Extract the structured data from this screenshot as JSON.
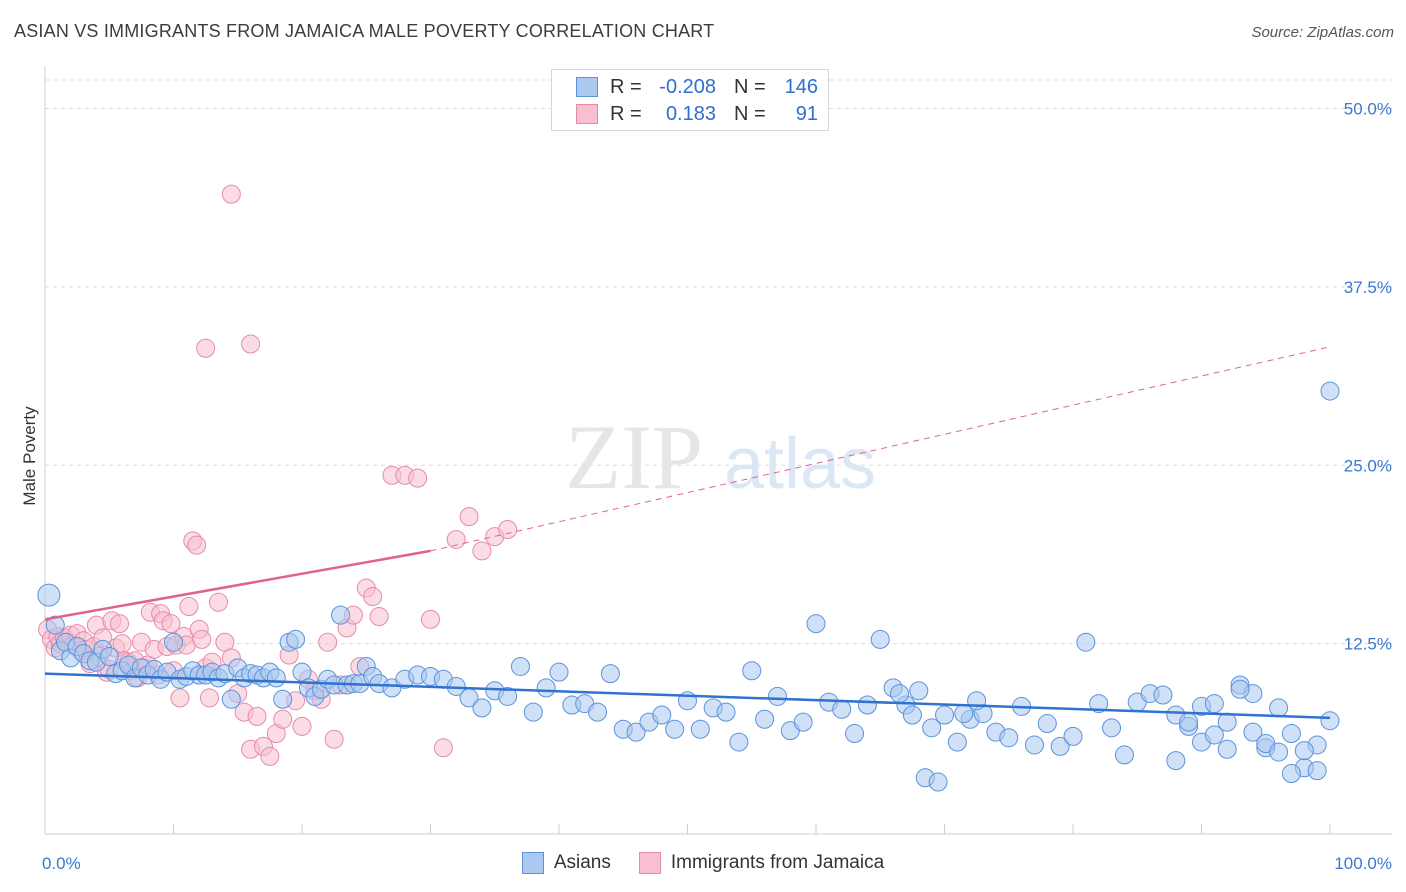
{
  "title": "ASIAN VS IMMIGRANTS FROM JAMAICA MALE POVERTY CORRELATION CHART",
  "source": "Source: ZipAtlas.com",
  "watermark": {
    "zip": "ZIP",
    "atlas": "atlas"
  },
  "legend": {
    "rows": [
      {
        "r_label": "R =",
        "r_value": "-0.208",
        "n_label": "N =",
        "n_value": "146"
      },
      {
        "r_label": "R =",
        "r_value": "0.183",
        "n_label": "N =",
        "n_value": "91"
      }
    ]
  },
  "bottom_legend": [
    "Asians",
    "Immigrants from Jamaica"
  ],
  "colors": {
    "asian_fill": "#aac8f0",
    "asian_stroke": "#5a93dc",
    "asian_line": "#2f72d0",
    "jamaica_fill": "#f7bfd0",
    "jamaica_stroke": "#e78aaa",
    "jamaica_line": "#e0628f",
    "axis_text": "#3a78d0",
    "grid": "#dcdcdc"
  },
  "chart_data": {
    "type": "scatter",
    "xlabel": "",
    "ylabel": "Male Poverty",
    "xlim": [
      0,
      100
    ],
    "ylim": [
      0,
      52
    ],
    "x_tick_labels": [
      "0.0%",
      "100.0%"
    ],
    "y_ticks": [
      12.5,
      25.0,
      37.5,
      50.0
    ],
    "y_tick_labels": [
      "12.5%",
      "25.0%",
      "37.5%",
      "50.0%"
    ],
    "grid": true,
    "series": [
      {
        "name": "Asians",
        "trend": {
          "x": [
            0,
            100
          ],
          "y": [
            10.4,
            7.3
          ]
        },
        "points": [
          [
            0.3,
            15.9
          ],
          [
            0.8,
            13.8
          ],
          [
            1.2,
            12.0
          ],
          [
            1.6,
            12.6
          ],
          [
            2.0,
            11.5
          ],
          [
            2.5,
            12.3
          ],
          [
            3.0,
            11.8
          ],
          [
            3.5,
            11.3
          ],
          [
            4.0,
            11.2
          ],
          [
            4.5,
            12.1
          ],
          [
            5.0,
            11.6
          ],
          [
            5.5,
            10.4
          ],
          [
            6.0,
            10.6
          ],
          [
            6.5,
            11.0
          ],
          [
            7.0,
            10.1
          ],
          [
            7.5,
            10.8
          ],
          [
            8.0,
            10.3
          ],
          [
            8.5,
            10.7
          ],
          [
            9.0,
            10.0
          ],
          [
            9.5,
            10.5
          ],
          [
            10.0,
            12.6
          ],
          [
            10.5,
            10.0
          ],
          [
            11.0,
            10.2
          ],
          [
            11.5,
            10.6
          ],
          [
            12.0,
            10.3
          ],
          [
            12.5,
            10.3
          ],
          [
            13.0,
            10.5
          ],
          [
            13.5,
            10.1
          ],
          [
            14.0,
            10.4
          ],
          [
            14.5,
            8.6
          ],
          [
            15.0,
            10.8
          ],
          [
            15.5,
            10.1
          ],
          [
            16.0,
            10.4
          ],
          [
            16.5,
            10.3
          ],
          [
            17.0,
            10.1
          ],
          [
            17.5,
            10.5
          ],
          [
            18.0,
            10.1
          ],
          [
            18.5,
            8.6
          ],
          [
            19.0,
            12.6
          ],
          [
            19.5,
            12.8
          ],
          [
            20.0,
            10.5
          ],
          [
            20.5,
            9.4
          ],
          [
            21.0,
            8.8
          ],
          [
            21.5,
            9.3
          ],
          [
            22.0,
            10.0
          ],
          [
            22.5,
            9.6
          ],
          [
            23.0,
            14.5
          ],
          [
            23.5,
            9.6
          ],
          [
            24.0,
            9.7
          ],
          [
            24.5,
            9.7
          ],
          [
            25.0,
            10.9
          ],
          [
            25.5,
            10.2
          ],
          [
            26.0,
            9.7
          ],
          [
            27.0,
            9.4
          ],
          [
            28.0,
            10.0
          ],
          [
            29.0,
            10.3
          ],
          [
            30.0,
            10.2
          ],
          [
            31.0,
            10.0
          ],
          [
            32.0,
            9.5
          ],
          [
            33.0,
            8.7
          ],
          [
            34.0,
            8.0
          ],
          [
            35.0,
            9.2
          ],
          [
            36.0,
            8.8
          ],
          [
            37.0,
            10.9
          ],
          [
            38.0,
            7.7
          ],
          [
            39.0,
            9.4
          ],
          [
            40.0,
            10.5
          ],
          [
            41.0,
            8.2
          ],
          [
            42.0,
            8.3
          ],
          [
            43.0,
            7.7
          ],
          [
            44.0,
            10.4
          ],
          [
            45.0,
            6.5
          ],
          [
            46.0,
            6.3
          ],
          [
            47.0,
            7.0
          ],
          [
            48.0,
            7.5
          ],
          [
            49.0,
            6.5
          ],
          [
            50.0,
            8.5
          ],
          [
            51.0,
            6.5
          ],
          [
            52.0,
            8.0
          ],
          [
            53.0,
            7.7
          ],
          [
            54.0,
            5.6
          ],
          [
            55.0,
            10.6
          ],
          [
            56.0,
            7.2
          ],
          [
            57.0,
            8.8
          ],
          [
            58.0,
            6.4
          ],
          [
            59.0,
            7.0
          ],
          [
            60.0,
            13.9
          ],
          [
            61.0,
            8.4
          ],
          [
            62.0,
            7.9
          ],
          [
            63.0,
            6.2
          ],
          [
            64.0,
            8.2
          ],
          [
            65.0,
            12.8
          ],
          [
            66.0,
            9.4
          ],
          [
            67.0,
            8.2
          ],
          [
            68.0,
            9.2
          ],
          [
            69.0,
            6.6
          ],
          [
            70.0,
            7.5
          ],
          [
            71.0,
            5.6
          ],
          [
            72.0,
            7.2
          ],
          [
            73.0,
            7.6
          ],
          [
            74.0,
            6.3
          ],
          [
            75.0,
            5.9
          ],
          [
            76.0,
            8.1
          ],
          [
            77.0,
            5.4
          ],
          [
            78.0,
            6.9
          ],
          [
            79.0,
            5.3
          ],
          [
            80.0,
            6.0
          ],
          [
            81.0,
            12.6
          ],
          [
            82.0,
            8.3
          ],
          [
            83.0,
            6.6
          ],
          [
            84.0,
            4.7
          ],
          [
            85.0,
            8.4
          ],
          [
            86.0,
            9.0
          ],
          [
            87.0,
            8.9
          ],
          [
            88.0,
            4.3
          ],
          [
            89.0,
            6.7
          ],
          [
            90.0,
            5.6
          ],
          [
            91.0,
            6.1
          ],
          [
            92.0,
            7.0
          ],
          [
            93.0,
            9.6
          ],
          [
            94.0,
            9.0
          ],
          [
            95.0,
            5.2
          ],
          [
            96.0,
            8.0
          ],
          [
            97.0,
            6.2
          ],
          [
            98.0,
            3.8
          ],
          [
            99.0,
            5.4
          ],
          [
            100.0,
            30.2
          ],
          [
            88.0,
            7.5
          ],
          [
            89.0,
            7.0
          ],
          [
            90.0,
            8.1
          ],
          [
            91.0,
            8.3
          ],
          [
            92.0,
            5.1
          ],
          [
            93.0,
            9.3
          ],
          [
            94.0,
            6.3
          ],
          [
            95.0,
            5.5
          ],
          [
            96.0,
            4.9
          ],
          [
            97.0,
            3.4
          ],
          [
            98.0,
            5.0
          ],
          [
            99.0,
            3.6
          ],
          [
            100.0,
            7.1
          ],
          [
            66.5,
            9.0
          ],
          [
            67.5,
            7.5
          ],
          [
            68.5,
            3.1
          ],
          [
            69.5,
            2.8
          ],
          [
            71.5,
            7.6
          ],
          [
            72.5,
            8.5
          ]
        ]
      },
      {
        "name": "Immigrants from Jamaica",
        "trend": {
          "x": [
            0,
            30
          ],
          "y": [
            14.2,
            19.0
          ],
          "dashed_to": {
            "x": 100,
            "y": 33.3
          }
        },
        "points": [
          [
            0.2,
            13.5
          ],
          [
            0.5,
            12.8
          ],
          [
            0.8,
            12.2
          ],
          [
            1.0,
            13.0
          ],
          [
            1.2,
            12.5
          ],
          [
            1.5,
            12.9
          ],
          [
            1.8,
            12.6
          ],
          [
            2.0,
            13.1
          ],
          [
            2.2,
            12.4
          ],
          [
            2.5,
            13.2
          ],
          [
            2.8,
            12.0
          ],
          [
            3.0,
            12.7
          ],
          [
            3.2,
            12.1
          ],
          [
            3.5,
            11.1
          ],
          [
            3.8,
            12.3
          ],
          [
            4.0,
            13.8
          ],
          [
            4.2,
            11.6
          ],
          [
            4.5,
            12.9
          ],
          [
            4.8,
            10.5
          ],
          [
            5.0,
            10.7
          ],
          [
            5.2,
            14.1
          ],
          [
            5.5,
            12.2
          ],
          [
            5.8,
            13.9
          ],
          [
            6.0,
            12.5
          ],
          [
            6.2,
            11.3
          ],
          [
            6.5,
            11.2
          ],
          [
            6.8,
            10.6
          ],
          [
            7.0,
            11.3
          ],
          [
            7.2,
            10.1
          ],
          [
            7.5,
            12.6
          ],
          [
            7.8,
            10.8
          ],
          [
            8.0,
            11.0
          ],
          [
            8.2,
            14.7
          ],
          [
            8.5,
            12.1
          ],
          [
            8.8,
            10.3
          ],
          [
            9.0,
            14.6
          ],
          [
            9.2,
            14.1
          ],
          [
            9.5,
            12.3
          ],
          [
            9.8,
            13.9
          ],
          [
            10.0,
            10.6
          ],
          [
            10.2,
            12.4
          ],
          [
            10.5,
            8.7
          ],
          [
            10.8,
            13.0
          ],
          [
            11.0,
            12.4
          ],
          [
            11.2,
            15.1
          ],
          [
            11.5,
            19.7
          ],
          [
            11.8,
            19.4
          ],
          [
            12.0,
            13.5
          ],
          [
            12.2,
            12.8
          ],
          [
            12.5,
            10.8
          ],
          [
            12.8,
            8.7
          ],
          [
            13.0,
            11.2
          ],
          [
            13.5,
            15.4
          ],
          [
            14.0,
            12.6
          ],
          [
            14.5,
            11.5
          ],
          [
            15.0,
            9.0
          ],
          [
            15.5,
            7.7
          ],
          [
            16.0,
            5.1
          ],
          [
            16.5,
            7.4
          ],
          [
            17.0,
            5.3
          ],
          [
            17.5,
            4.6
          ],
          [
            18.0,
            6.2
          ],
          [
            18.5,
            7.2
          ],
          [
            19.0,
            11.7
          ],
          [
            19.5,
            8.5
          ],
          [
            20.0,
            6.7
          ],
          [
            20.5,
            10.0
          ],
          [
            21.0,
            9.2
          ],
          [
            21.5,
            8.6
          ],
          [
            22.0,
            12.6
          ],
          [
            22.5,
            5.8
          ],
          [
            23.0,
            9.6
          ],
          [
            23.5,
            13.6
          ],
          [
            24.0,
            14.5
          ],
          [
            24.5,
            10.9
          ],
          [
            25.0,
            16.4
          ],
          [
            25.5,
            15.8
          ],
          [
            26.0,
            14.4
          ],
          [
            27.0,
            24.3
          ],
          [
            28.0,
            24.3
          ],
          [
            29.0,
            24.1
          ],
          [
            30.0,
            14.2
          ],
          [
            31.0,
            5.2
          ],
          [
            32.0,
            19.8
          ],
          [
            33.0,
            21.4
          ],
          [
            34.0,
            19.0
          ],
          [
            35.0,
            20.0
          ],
          [
            36.0,
            20.5
          ],
          [
            12.5,
            33.2
          ],
          [
            14.5,
            44.0
          ],
          [
            16.0,
            33.5
          ]
        ]
      }
    ]
  }
}
